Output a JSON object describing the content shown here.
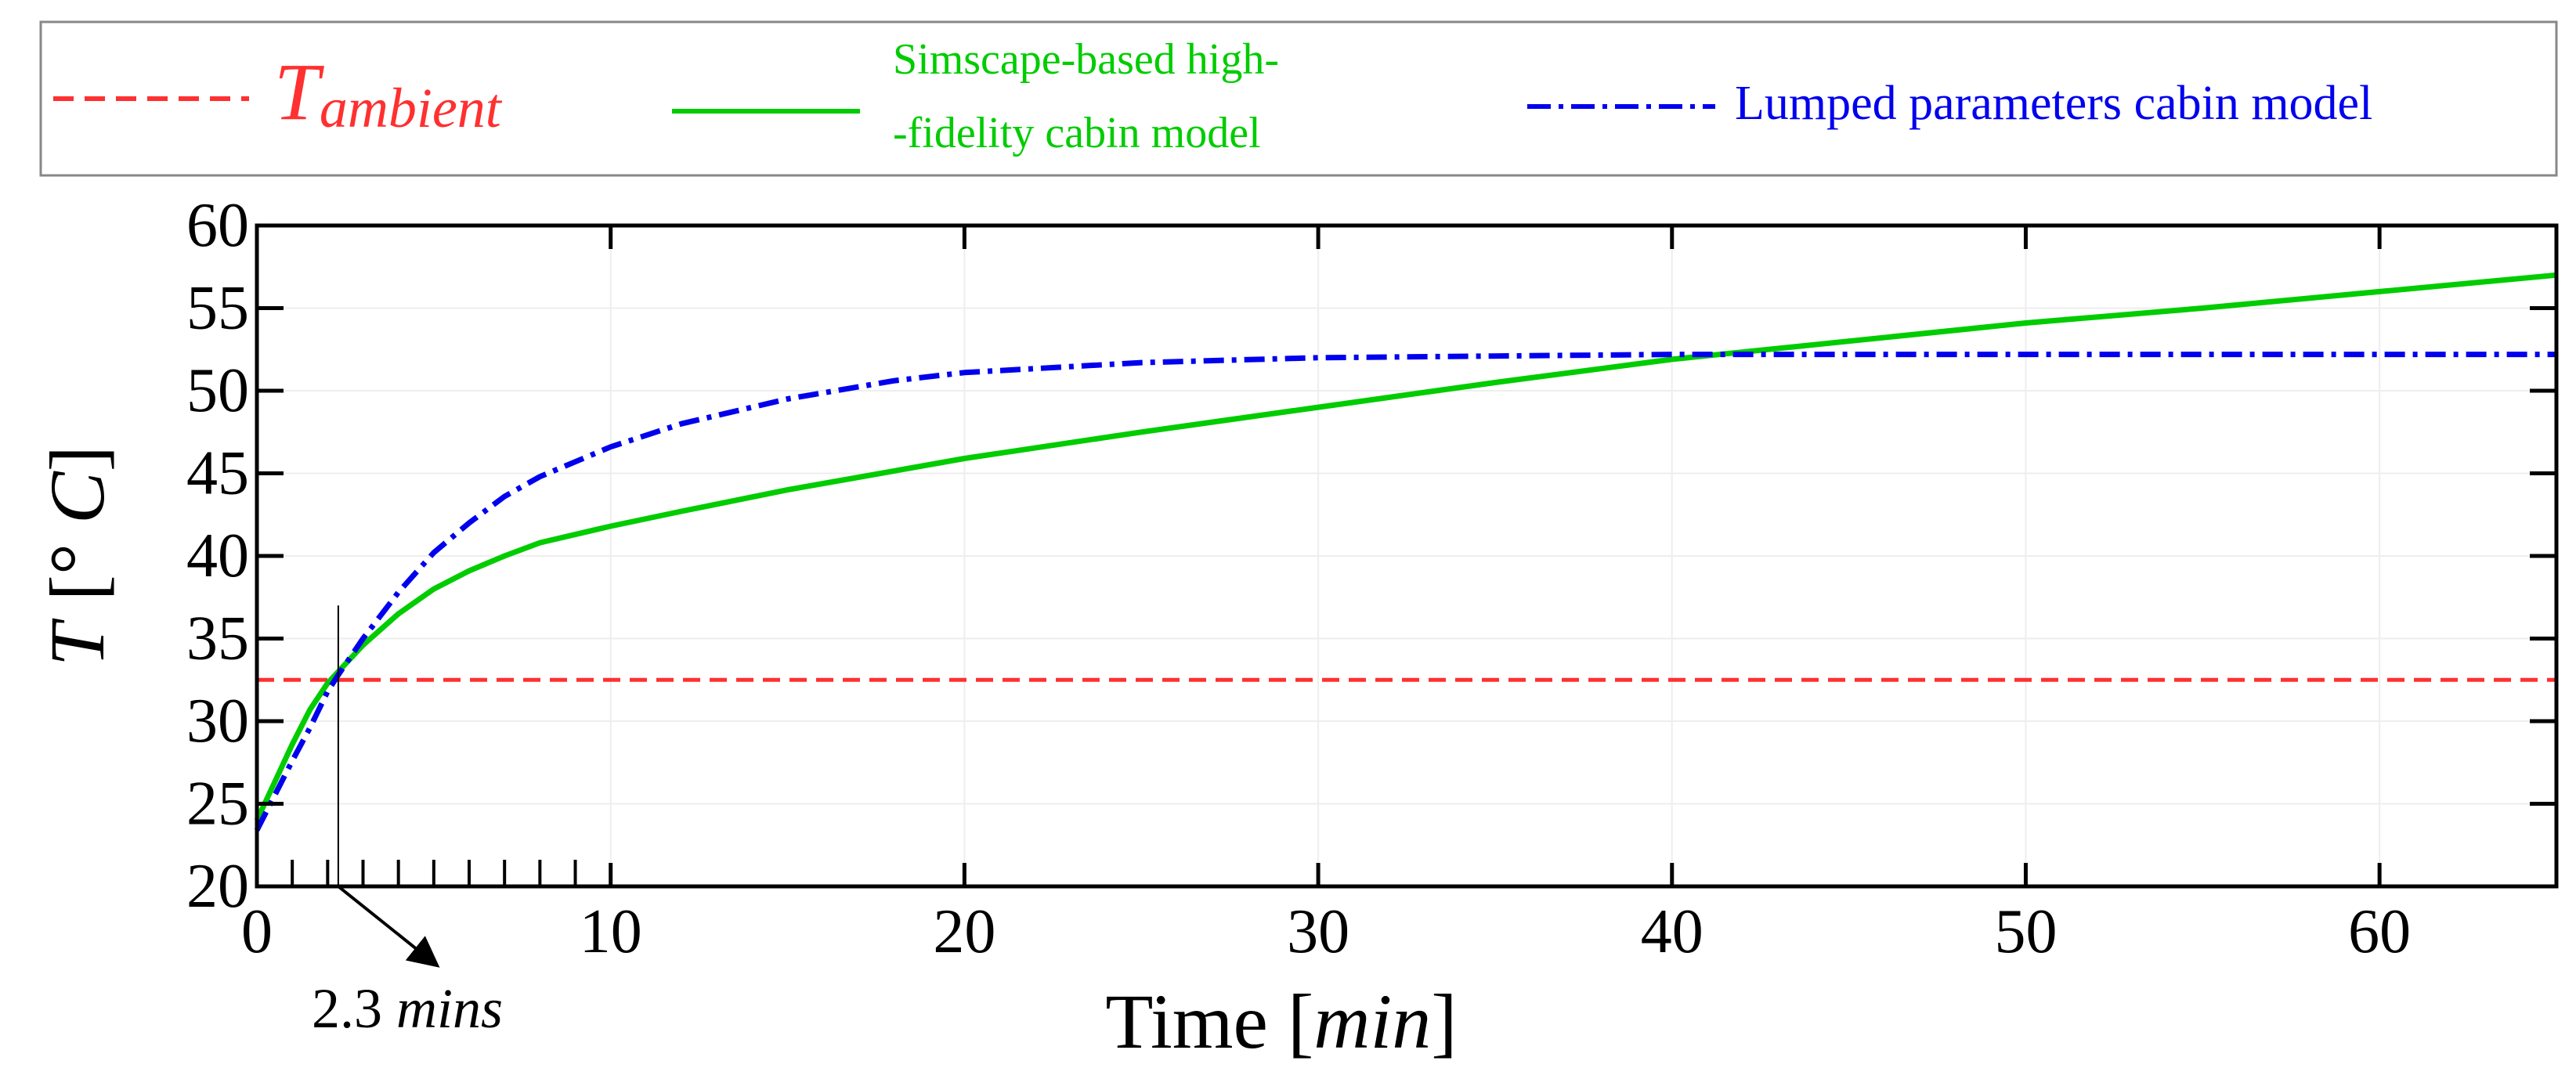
{
  "colors": {
    "ambient": "#ff3030",
    "simscape": "#00cc00",
    "lumped": "#0000ee",
    "axis": "#000000",
    "grid": "#eeeeee",
    "annotation": "#000000"
  },
  "chart_data": {
    "type": "line",
    "title": "",
    "xlabel": "Time [min]",
    "xlabel_parts": {
      "prefix": "Time [",
      "var": "min",
      "suffix": "]"
    },
    "ylabel": "T [° C]",
    "ylabel_parts": {
      "var": "T",
      "bracket": "[° ",
      "unit": "C",
      "close": "]"
    },
    "xlim": [
      0,
      65
    ],
    "ylim": [
      20,
      60
    ],
    "xticks": [
      0,
      10,
      20,
      30,
      40,
      50,
      60
    ],
    "yticks": [
      20,
      25,
      30,
      35,
      40,
      45,
      50,
      55,
      60
    ],
    "minor_xticks": [
      1,
      2,
      3,
      4,
      5,
      6,
      7,
      8,
      9
    ],
    "grid": true,
    "legend_position": "top",
    "legend": [
      {
        "key": "ambient",
        "label": "T",
        "subscript": "ambient",
        "style": "dashed"
      },
      {
        "key": "simscape",
        "label_line1": "Simscape-based high-",
        "label_line2": "-fidelity cabin model",
        "style": "solid"
      },
      {
        "key": "lumped",
        "label": "Lumped parameters cabin model",
        "style": "dash-dot"
      }
    ],
    "series": [
      {
        "name": "T_ambient",
        "key": "ambient",
        "x": [
          0,
          65
        ],
        "y": [
          32.5,
          32.5
        ]
      },
      {
        "name": "Simscape-based high-fidelity cabin model",
        "key": "simscape",
        "x": [
          0,
          0.5,
          1,
          1.5,
          2,
          2.3,
          3,
          4,
          5,
          6,
          7,
          8,
          10,
          12,
          15,
          20,
          25,
          30,
          35,
          40,
          45,
          50,
          55,
          60,
          65
        ],
        "y": [
          24.0,
          26.3,
          28.6,
          30.7,
          32.3,
          33.0,
          34.6,
          36.5,
          38.0,
          39.1,
          40.0,
          40.8,
          41.8,
          42.7,
          44.0,
          45.9,
          47.5,
          49.0,
          50.5,
          51.9,
          53.0,
          54.1,
          55.0,
          56.0,
          57.0
        ]
      },
      {
        "name": "Lumped parameters cabin model",
        "key": "lumped",
        "x": [
          0,
          0.5,
          1,
          1.5,
          2,
          2.3,
          3,
          4,
          5,
          6,
          7,
          8,
          10,
          12,
          15,
          18,
          20,
          25,
          30,
          40,
          50,
          60,
          65
        ],
        "y": [
          23.4,
          25.5,
          27.6,
          29.6,
          31.8,
          32.8,
          35.0,
          37.8,
          40.2,
          42.0,
          43.6,
          44.8,
          46.6,
          48.0,
          49.5,
          50.6,
          51.1,
          51.7,
          52.0,
          52.2,
          52.2,
          52.2,
          52.2
        ]
      }
    ],
    "annotations": [
      {
        "type": "vline",
        "x": 2.3,
        "y_from": 20,
        "y_to": 37
      },
      {
        "type": "arrow",
        "text_num": "2.3",
        "text_unit": "mins",
        "from_x": 2.3,
        "from_y": 20,
        "to_x": 5.1,
        "to_y": 15.2
      }
    ]
  }
}
